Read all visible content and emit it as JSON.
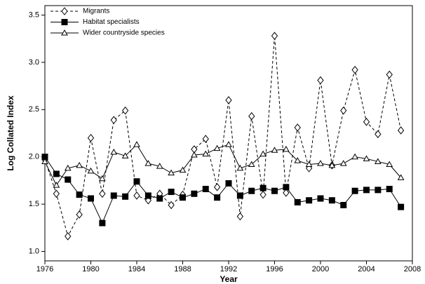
{
  "chart_data": {
    "type": "line",
    "x_label": "Year",
    "y_label": "Log Collated Index",
    "x": [
      1976,
      1977,
      1978,
      1979,
      1980,
      1981,
      1982,
      1983,
      1984,
      1985,
      1986,
      1987,
      1988,
      1989,
      1990,
      1991,
      1992,
      1993,
      1994,
      1995,
      1996,
      1997,
      1998,
      1999,
      2000,
      2001,
      2002,
      2003,
      2004,
      2005,
      2006,
      2007
    ],
    "series": [
      {
        "name": "Migrants",
        "color": "#000000",
        "marker": "diamond",
        "dash": true,
        "values": [
          1.97,
          1.61,
          1.16,
          1.39,
          2.2,
          1.61,
          2.39,
          2.49,
          1.59,
          1.54,
          1.61,
          1.49,
          1.6,
          2.08,
          2.19,
          1.68,
          2.6,
          1.37,
          2.43,
          1.6,
          3.28,
          1.62,
          2.31,
          1.88,
          2.81,
          1.91,
          2.49,
          2.92,
          2.37,
          2.24,
          2.87,
          2.28
        ]
      },
      {
        "name": "Habitat specialists",
        "color": "#000000",
        "marker": "square",
        "dash": false,
        "values": [
          2.0,
          1.82,
          1.76,
          1.6,
          1.56,
          1.3,
          1.59,
          1.58,
          1.74,
          1.59,
          1.56,
          1.63,
          1.57,
          1.61,
          1.66,
          1.57,
          1.72,
          1.59,
          1.64,
          1.67,
          1.64,
          1.68,
          1.52,
          1.54,
          1.56,
          1.54,
          1.49,
          1.64,
          1.65,
          1.65,
          1.66,
          1.47
        ]
      },
      {
        "name": "Wider countryside species",
        "color": "#000000",
        "marker": "triangle",
        "dash": false,
        "values": [
          1.95,
          1.7,
          1.88,
          1.91,
          1.85,
          1.77,
          2.05,
          2.01,
          2.13,
          1.93,
          1.9,
          1.83,
          1.86,
          2.02,
          2.03,
          2.09,
          2.13,
          1.88,
          1.92,
          2.03,
          2.07,
          2.08,
          1.96,
          1.92,
          1.93,
          1.91,
          1.93,
          2.0,
          1.98,
          1.95,
          1.92,
          1.78
        ]
      }
    ],
    "xlim": [
      1976,
      2008
    ],
    "xticks": [
      1976,
      1980,
      1984,
      1988,
      1992,
      1996,
      2000,
      2004,
      2008
    ],
    "ylim": [
      0.9,
      3.6
    ],
    "yticks": [
      {
        "value": 1,
        "label": "1.0"
      },
      1.5,
      {
        "value": 2,
        "label": "2.0"
      },
      2.5,
      {
        "value": 3,
        "label": "3.0"
      },
      3.5
    ],
    "legend": "top-left",
    "grid": false
  }
}
